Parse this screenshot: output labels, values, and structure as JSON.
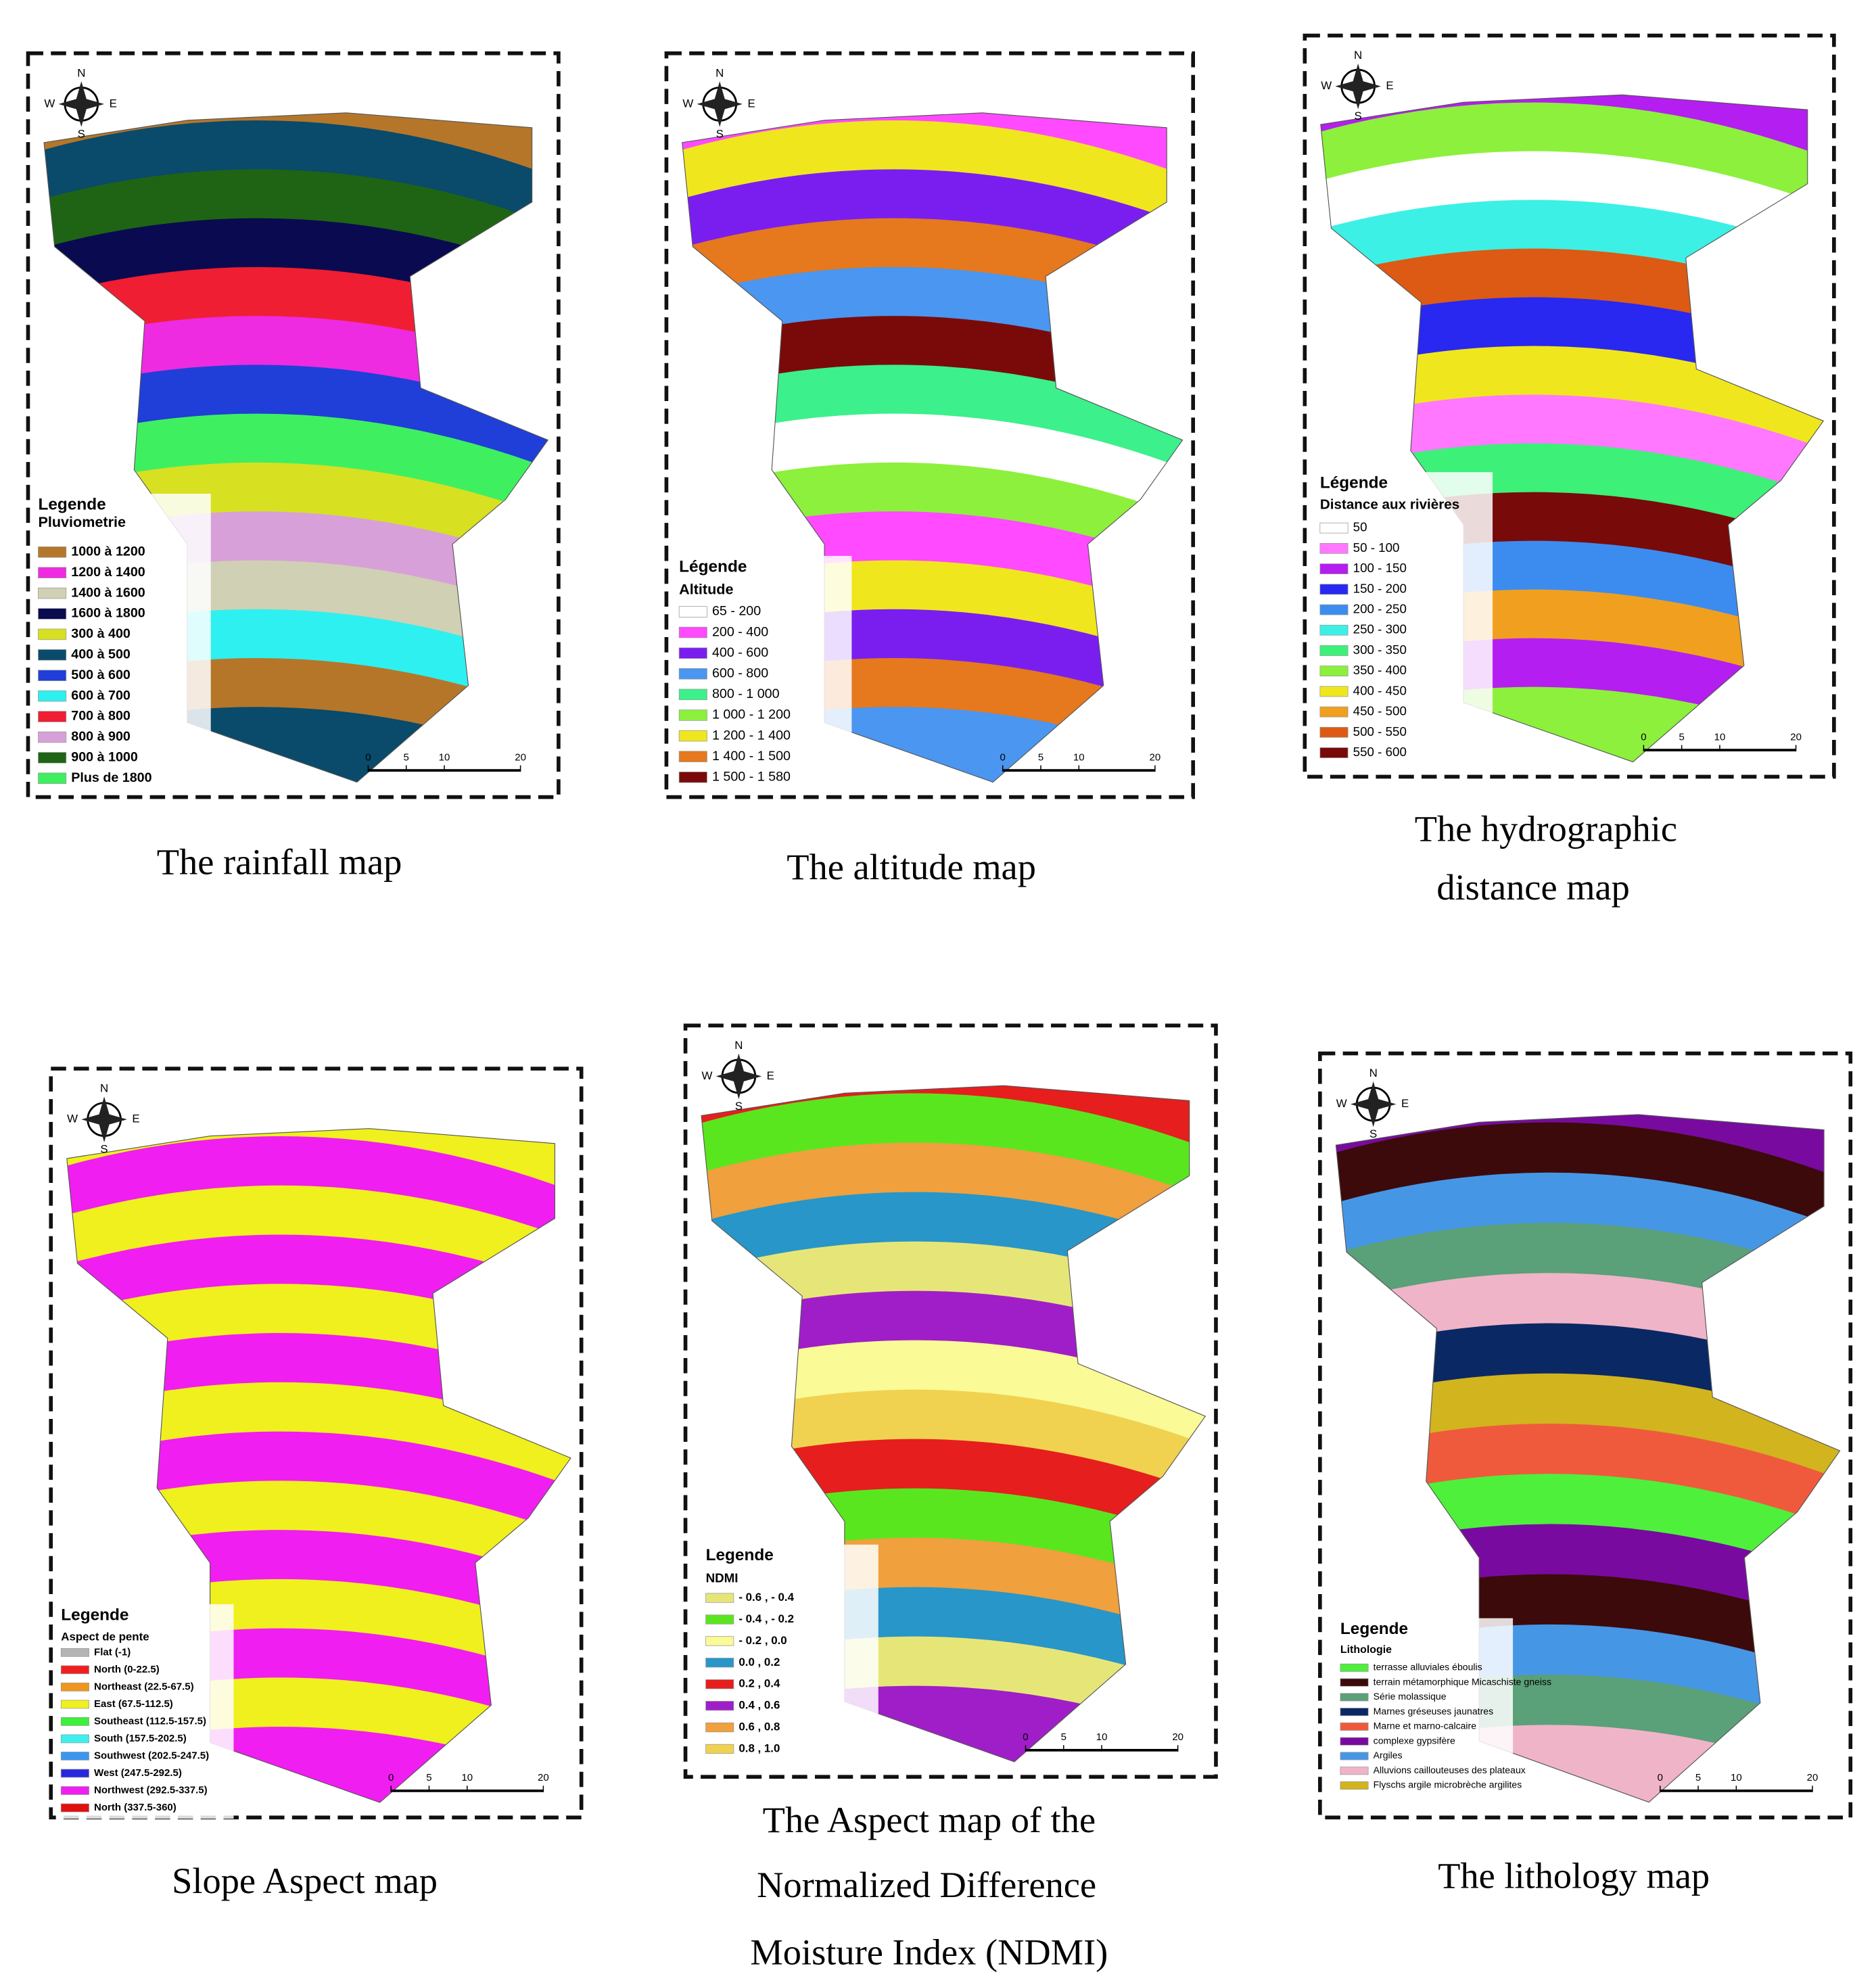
{
  "compass_labels": {
    "n": "N",
    "s": "S",
    "w": "W",
    "e": "E"
  },
  "panels": [
    {
      "caption": [
        "The rainfall map"
      ],
      "legend_title": "Legende",
      "legend_subtitle": "Pluviometrie",
      "legend": [
        {
          "label": "1000 à 1200",
          "color": "#b5762a"
        },
        {
          "label": "1200 à 1400",
          "color": "#ee2be0"
        },
        {
          "label": "1400 à 1600",
          "color": "#d0d0b4"
        },
        {
          "label": "1600 à 1800",
          "color": "#0a0a50"
        },
        {
          "label": "300 à 400",
          "color": "#d8e022"
        },
        {
          "label": "400 à 500",
          "color": "#0a4a6a"
        },
        {
          "label": "500 à 600",
          "color": "#1f3fd8"
        },
        {
          "label": "600 à 700",
          "color": "#2ef0f0"
        },
        {
          "label": "700 à 800",
          "color": "#f01e32"
        },
        {
          "label": "800 à 900",
          "color": "#d8a0d8"
        },
        {
          "label": "900 à 1000",
          "color": "#1e6414"
        },
        {
          "label": "Plus de 1800",
          "color": "#3ef060"
        }
      ],
      "scale_bar": [
        0,
        5,
        10,
        20
      ]
    },
    {
      "caption": [
        "The altitude map"
      ],
      "legend_title": "Légende",
      "legend_subtitle": "Altitude",
      "legend": [
        {
          "label": "65 - 200",
          "color": "#ffffff"
        },
        {
          "label": "200 - 400",
          "color": "#ff4aff"
        },
        {
          "label": "400 - 600",
          "color": "#7a1ef0"
        },
        {
          "label": "600 - 800",
          "color": "#4a96f0"
        },
        {
          "label": "800 - 1 000",
          "color": "#3cf08c"
        },
        {
          "label": "1 000 - 1 200",
          "color": "#8cf03c"
        },
        {
          "label": "1 200 - 1 400",
          "color": "#f0e61e"
        },
        {
          "label": "1 400 - 1 500",
          "color": "#e6781e"
        },
        {
          "label": "1 500 - 1 580",
          "color": "#7a0a0a"
        }
      ],
      "scale_bar": [
        0,
        5,
        10,
        20
      ]
    },
    {
      "caption": [
        "The   hydrographic",
        "distance map"
      ],
      "legend_title": "Légende",
      "legend_subtitle": "Distance aux rivières",
      "legend": [
        {
          "label": "50",
          "color": "#ffffff"
        },
        {
          "label": "50 - 100",
          "color": "#ff78ff"
        },
        {
          "label": "100 - 150",
          "color": "#b41ef0"
        },
        {
          "label": "150 - 200",
          "color": "#2828f0"
        },
        {
          "label": "200 - 250",
          "color": "#3c8cf0"
        },
        {
          "label": "250 - 300",
          "color": "#3cf0e6"
        },
        {
          "label": "300 - 350",
          "color": "#3cf078"
        },
        {
          "label": "350 - 400",
          "color": "#8cf03c"
        },
        {
          "label": "400 - 450",
          "color": "#f0e61e"
        },
        {
          "label": "450 - 500",
          "color": "#f0a01e"
        },
        {
          "label": "500 - 550",
          "color": "#dc5a14"
        },
        {
          "label": "550 - 600",
          "color": "#780a0a"
        }
      ],
      "scale_bar": [
        0,
        5,
        10,
        20
      ]
    },
    {
      "caption": [
        "Slope Aspect map"
      ],
      "legend_title": "Legende",
      "legend_subtitle": "Aspect de pente",
      "legend": [
        {
          "label": "Flat (-1)",
          "color": "#b4b4b4"
        },
        {
          "label": "North (0-22.5)",
          "color": "#f01e1e"
        },
        {
          "label": "Northeast (22.5-67.5)",
          "color": "#f0961e"
        },
        {
          "label": "East (67.5-112.5)",
          "color": "#f0f01e"
        },
        {
          "label": "Southeast (112.5-157.5)",
          "color": "#3cf03c"
        },
        {
          "label": "South (157.5-202.5)",
          "color": "#3cf0f0"
        },
        {
          "label": "Southwest (202.5-247.5)",
          "color": "#3c96f0"
        },
        {
          "label": "West (247.5-292.5)",
          "color": "#2828dc"
        },
        {
          "label": "Northwest (292.5-337.5)",
          "color": "#f01ef0"
        },
        {
          "label": "North (337.5-360)",
          "color": "#e01010"
        }
      ],
      "scale_bar": [
        0,
        5,
        10,
        20
      ]
    },
    {
      "caption": [
        "The Aspect map of the",
        "Normalized  Difference",
        "Moisture Index (NDMI)"
      ],
      "legend_title": "Legende",
      "legend_subtitle": "NDMI",
      "legend": [
        {
          "label": "- 0.6 , - 0.4",
          "color": "#e6e678"
        },
        {
          "label": "- 0.4 , - 0.2",
          "color": "#5ae61e"
        },
        {
          "label": "- 0.2 , 0.0",
          "color": "#fafa96"
        },
        {
          "label": "0.0 , 0.2",
          "color": "#2896c8"
        },
        {
          "label": "0.2 , 0.4",
          "color": "#e61e1e"
        },
        {
          "label": "0.4 , 0.6",
          "color": "#a01ec8"
        },
        {
          "label": "0.6 , 0.8",
          "color": "#f0a03c"
        },
        {
          "label": "0.8 , 1.0",
          "color": "#f0d250"
        }
      ],
      "scale_bar": [
        0,
        5,
        10,
        20
      ]
    },
    {
      "caption": [
        "The lithology map"
      ],
      "legend_title": "Legende",
      "legend_subtitle": "Lithologie",
      "legend": [
        {
          "label": "terrasse alluviales éboulis",
          "color": "#4ef03c"
        },
        {
          "label": "terrain métamorphique Micaschiste gneiss",
          "color": "#3c0a0a"
        },
        {
          "label": "Série molassique",
          "color": "#5aa078"
        },
        {
          "label": "Marnes gréseuses jaunatres",
          "color": "#0a2864"
        },
        {
          "label": "Marne et marno-calcaire",
          "color": "#f05a3c"
        },
        {
          "label": "complexe gypsifère",
          "color": "#780aa0"
        },
        {
          "label": "Argiles",
          "color": "#4696e6"
        },
        {
          "label": "Alluvions caillouteuses des plateaux",
          "color": "#f0b4c8"
        },
        {
          "label": "Flyschs argile microbrèche argilites",
          "color": "#d2b41e"
        }
      ],
      "scale_bar": [
        0,
        5,
        10,
        20
      ]
    }
  ]
}
